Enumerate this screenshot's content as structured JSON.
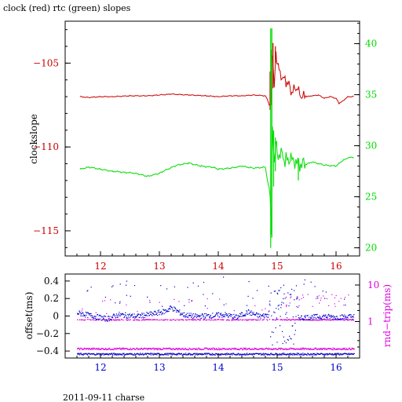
{
  "figure": {
    "title": "clock (red) rtc (green) slopes",
    "footer": "2011-09-11 charse"
  },
  "colors": {
    "clock": "#cc0000",
    "rtc": "#00dd00",
    "offset": "#0000cc",
    "roundtrip": "#dd00dd",
    "axis": "#000000"
  },
  "chart_data": [
    {
      "type": "line",
      "title": "clock (red) rtc (green) slopes",
      "ylabel": "clockslope",
      "y2label": "",
      "xlim": [
        11.4,
        16.4
      ],
      "ylim": [
        -116.5,
        -102.5
      ],
      "y2lim": [
        19.2,
        42.2
      ],
      "x_ticks": [
        12,
        13,
        14,
        15,
        16
      ],
      "x_tick_labels": [
        "12",
        "13",
        "14",
        "15",
        "16"
      ],
      "y_ticks": [
        -105,
        -110,
        -115
      ],
      "y_tick_labels": [
        "−105",
        "−110",
        "−115"
      ],
      "y2_ticks": [
        40,
        35,
        30,
        25,
        20
      ],
      "y2_tick_labels": [
        "40",
        "35",
        "30",
        "25",
        "20"
      ],
      "series": [
        {
          "name": "clock",
          "axis": "left",
          "x": [
            11.65,
            11.8,
            12.0,
            12.2,
            12.5,
            12.8,
            13.0,
            13.2,
            13.5,
            13.8,
            14.0,
            14.2,
            14.4,
            14.6,
            14.8,
            14.88,
            14.9,
            14.92,
            14.95,
            14.98,
            15.0,
            15.05,
            15.1,
            15.15,
            15.2,
            15.25,
            15.3,
            15.35,
            15.4,
            15.45,
            15.5,
            15.6,
            15.7,
            15.8,
            15.9,
            16.0,
            16.05,
            16.1,
            16.2,
            16.3
          ],
          "y": [
            -107.0,
            -107.05,
            -107.0,
            -107.0,
            -106.95,
            -106.95,
            -106.9,
            -106.85,
            -106.9,
            -106.95,
            -107.0,
            -106.95,
            -106.95,
            -106.9,
            -106.95,
            -107.5,
            -105.5,
            -104.2,
            -106.5,
            -104.3,
            -105.0,
            -105.6,
            -105.9,
            -106.1,
            -106.3,
            -106.8,
            -106.4,
            -106.6,
            -107.0,
            -106.9,
            -107.0,
            -106.95,
            -106.9,
            -107.1,
            -107.0,
            -107.1,
            -107.4,
            -107.3,
            -107.0,
            -107.0
          ]
        },
        {
          "name": "rtc",
          "axis": "right",
          "x": [
            11.65,
            11.8,
            12.0,
            12.2,
            12.4,
            12.6,
            12.8,
            13.0,
            13.1,
            13.3,
            13.5,
            13.7,
            13.9,
            14.0,
            14.2,
            14.4,
            14.6,
            14.8,
            14.88,
            14.9,
            14.92,
            14.95,
            14.98,
            15.0,
            15.05,
            15.1,
            15.15,
            15.2,
            15.3,
            15.4,
            15.5,
            15.6,
            15.8,
            16.0,
            16.1,
            16.2,
            16.3
          ],
          "y": [
            27.7,
            27.9,
            27.7,
            27.5,
            27.4,
            27.3,
            27.0,
            27.3,
            27.6,
            28.1,
            28.3,
            28.0,
            27.9,
            27.7,
            27.8,
            28.0,
            27.8,
            27.9,
            25.0,
            22.0,
            31.0,
            28.5,
            30.5,
            29.0,
            29.2,
            28.9,
            28.5,
            28.8,
            28.3,
            28.1,
            28.2,
            28.4,
            28.1,
            28.0,
            28.5,
            28.8,
            28.9
          ]
        }
      ]
    },
    {
      "type": "scatter",
      "ylabel": "offset(ms)",
      "y2label": "rnd−trip(ms)",
      "xlim": [
        11.4,
        16.4
      ],
      "ylim": [
        -0.48,
        0.48
      ],
      "y2lim_log": [
        0.1,
        20
      ],
      "x_ticks": [
        12,
        13,
        14,
        15,
        16
      ],
      "x_tick_labels": [
        "12",
        "13",
        "14",
        "15",
        "16"
      ],
      "y_ticks": [
        0.4,
        0.2,
        0,
        -0.2,
        -0.4
      ],
      "y_tick_labels": [
        "0.4",
        "0.2",
        "0",
        "−0.2",
        "−0.4"
      ],
      "y2_ticks": [
        10,
        1
      ],
      "y2_tick_labels": [
        "10",
        "1"
      ],
      "series": [
        {
          "name": "offset",
          "axis": "left",
          "baseline": [
            [
              11.6,
              0.04
            ],
            [
              11.9,
              0.0
            ],
            [
              12.1,
              -0.03
            ],
            [
              12.3,
              0.02
            ],
            [
              12.6,
              0.0
            ],
            [
              12.9,
              0.03
            ],
            [
              13.1,
              0.06
            ],
            [
              13.2,
              0.1
            ],
            [
              13.4,
              0.02
            ],
            [
              13.6,
              0.0
            ],
            [
              13.9,
              0.01
            ],
            [
              14.1,
              0.02
            ],
            [
              14.3,
              -0.01
            ],
            [
              14.5,
              0.05
            ],
            [
              14.7,
              0.0
            ],
            [
              14.85,
              0.02
            ],
            [
              15.0,
              0.0
            ],
            [
              15.2,
              -0.02
            ],
            [
              15.5,
              -0.01
            ],
            [
              15.8,
              0.0
            ],
            [
              16.0,
              -0.01
            ],
            [
              16.3,
              0.0
            ]
          ],
          "upper_band": -0.37,
          "lower_band": -0.43
        },
        {
          "name": "roundtrip",
          "axis": "right",
          "lower_level": 1.15,
          "upper_level": 3.2,
          "band_start": 15.1
        }
      ]
    }
  ]
}
